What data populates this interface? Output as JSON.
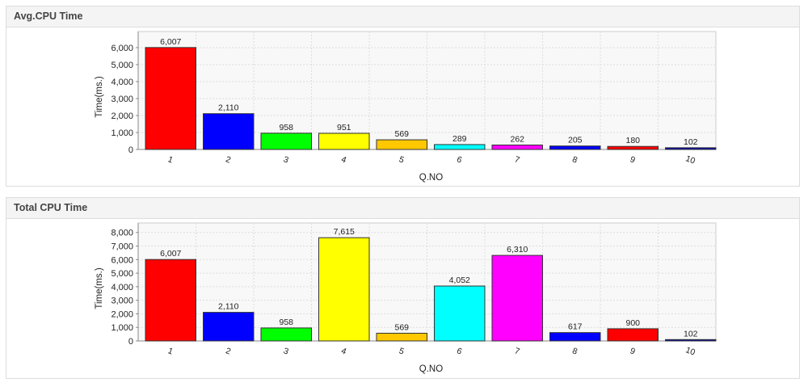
{
  "chart_data": [
    {
      "panel_title": "Avg.CPU Time",
      "type": "bar",
      "xlabel": "Q.NO",
      "ylabel": "Time(ms.)",
      "categories": [
        "1",
        "2",
        "3",
        "4",
        "5",
        "6",
        "7",
        "8",
        "9",
        "10"
      ],
      "values": [
        6007,
        2110,
        958,
        951,
        569,
        289,
        262,
        205,
        180,
        102
      ],
      "value_labels": [
        "6,007",
        "2,110",
        "958",
        "951",
        "569",
        "289",
        "262",
        "205",
        "180",
        "102"
      ],
      "yticks": [
        "0",
        "1,000",
        "2,000",
        "3,000",
        "4,000",
        "5,000",
        "6,000"
      ],
      "ylim": [
        0,
        6950
      ],
      "grid": true
    },
    {
      "panel_title": "Total CPU Time",
      "type": "bar",
      "xlabel": "Q.NO",
      "ylabel": "Time(ms.)",
      "categories": [
        "1",
        "2",
        "3",
        "4",
        "5",
        "6",
        "7",
        "8",
        "9",
        "10"
      ],
      "values": [
        6007,
        2110,
        958,
        7615,
        569,
        4052,
        6310,
        617,
        900,
        102
      ],
      "value_labels": [
        "6,007",
        "2,110",
        "958",
        "7,615",
        "569",
        "4,052",
        "6,310",
        "617",
        "900",
        "102"
      ],
      "yticks": [
        "0",
        "1,000",
        "2,000",
        "3,000",
        "4,000",
        "5,000",
        "6,000",
        "7,000",
        "8,000"
      ],
      "ylim": [
        0,
        8700
      ],
      "grid": true
    }
  ],
  "bar_colors": [
    "#ff0000",
    "#0000ff",
    "#00ff00",
    "#ffff00",
    "#ffc800",
    "#00ffff",
    "#ff00ff",
    "#0000ff",
    "#ff0000",
    "#0000b0"
  ]
}
